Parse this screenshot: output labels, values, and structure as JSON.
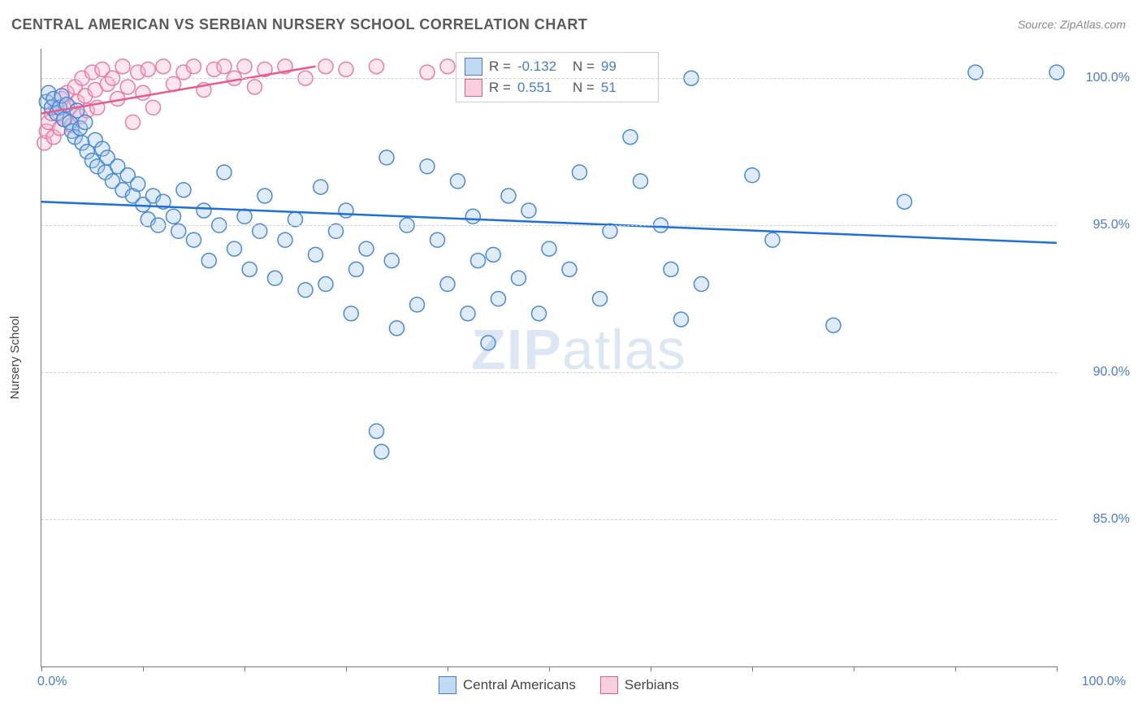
{
  "title": "CENTRAL AMERICAN VS SERBIAN NURSERY SCHOOL CORRELATION CHART",
  "source_label": "Source:",
  "source_value": "ZipAtlas.com",
  "yaxis_title": "Nursery School",
  "watermark": {
    "bold": "ZIP",
    "rest": "atlas"
  },
  "chart": {
    "type": "scatter",
    "background_color": "#ffffff",
    "grid_color": "#d0d0d0",
    "axis_color": "#777777",
    "text_color": "#5a5a5a",
    "value_color": "#4a7bd0",
    "xlim": [
      0,
      100
    ],
    "ylim": [
      80,
      101
    ],
    "x_ticks": [
      0,
      10,
      20,
      30,
      40,
      50,
      60,
      70,
      80,
      90,
      100
    ],
    "x_tick_labels": {
      "0": "0.0%",
      "100": "100.0%"
    },
    "y_gridlines": [
      85,
      90,
      95,
      100
    ],
    "y_tick_labels": {
      "85": "85.0%",
      "90": "90.0%",
      "95": "95.0%",
      "100": "100.0%"
    },
    "marker_radius": 9,
    "marker_opacity": 0.35,
    "line_width": 2.5
  },
  "series": {
    "blue": {
      "label": "Central Americans",
      "fill": "#a7c7ef",
      "stroke": "#4a8ad4",
      "line_color": "#1e6fd9",
      "R": "-0.132",
      "N": "99",
      "trend": {
        "x1": 0,
        "y1": 95.8,
        "x2": 100,
        "y2": 94.4
      },
      "points": [
        [
          0.5,
          99.2
        ],
        [
          0.7,
          99.5
        ],
        [
          1.0,
          99.0
        ],
        [
          1.2,
          99.3
        ],
        [
          1.5,
          98.8
        ],
        [
          1.8,
          99.0
        ],
        [
          2.0,
          99.4
        ],
        [
          2.2,
          98.6
        ],
        [
          2.5,
          99.1
        ],
        [
          2.8,
          98.5
        ],
        [
          3.0,
          98.2
        ],
        [
          3.3,
          98.0
        ],
        [
          3.5,
          98.9
        ],
        [
          3.8,
          98.3
        ],
        [
          4.0,
          97.8
        ],
        [
          4.3,
          98.5
        ],
        [
          4.5,
          97.5
        ],
        [
          5.0,
          97.2
        ],
        [
          5.3,
          97.9
        ],
        [
          5.5,
          97.0
        ],
        [
          6.0,
          97.6
        ],
        [
          6.3,
          96.8
        ],
        [
          6.5,
          97.3
        ],
        [
          7.0,
          96.5
        ],
        [
          7.5,
          97.0
        ],
        [
          8.0,
          96.2
        ],
        [
          8.5,
          96.7
        ],
        [
          9.0,
          96.0
        ],
        [
          9.5,
          96.4
        ],
        [
          10.0,
          95.7
        ],
        [
          10.5,
          95.2
        ],
        [
          11.0,
          96.0
        ],
        [
          11.5,
          95.0
        ],
        [
          12.0,
          95.8
        ],
        [
          13.0,
          95.3
        ],
        [
          13.5,
          94.8
        ],
        [
          14.0,
          96.2
        ],
        [
          15.0,
          94.5
        ],
        [
          16.0,
          95.5
        ],
        [
          16.5,
          93.8
        ],
        [
          17.5,
          95.0
        ],
        [
          18.0,
          96.8
        ],
        [
          19.0,
          94.2
        ],
        [
          20.0,
          95.3
        ],
        [
          20.5,
          93.5
        ],
        [
          21.5,
          94.8
        ],
        [
          22.0,
          96.0
        ],
        [
          23.0,
          93.2
        ],
        [
          24.0,
          94.5
        ],
        [
          25.0,
          95.2
        ],
        [
          26.0,
          92.8
        ],
        [
          27.0,
          94.0
        ],
        [
          27.5,
          96.3
        ],
        [
          28.0,
          93.0
        ],
        [
          29.0,
          94.8
        ],
        [
          30.0,
          95.5
        ],
        [
          30.5,
          92.0
        ],
        [
          31.0,
          93.5
        ],
        [
          32.0,
          94.2
        ],
        [
          33.0,
          88.0
        ],
        [
          34.0,
          97.3
        ],
        [
          34.5,
          93.8
        ],
        [
          35.0,
          91.5
        ],
        [
          36.0,
          95.0
        ],
        [
          37.0,
          92.3
        ],
        [
          38.0,
          97.0
        ],
        [
          39.0,
          94.5
        ],
        [
          40.0,
          93.0
        ],
        [
          41.0,
          96.5
        ],
        [
          42.0,
          92.0
        ],
        [
          42.5,
          95.3
        ],
        [
          43.0,
          93.8
        ],
        [
          44.0,
          91.0
        ],
        [
          44.5,
          94.0
        ],
        [
          45.0,
          92.5
        ],
        [
          46.0,
          96.0
        ],
        [
          47.0,
          93.2
        ],
        [
          48.0,
          95.5
        ],
        [
          49.0,
          92.0
        ],
        [
          50.0,
          94.2
        ],
        [
          52.0,
          93.5
        ],
        [
          53.0,
          96.8
        ],
        [
          55.0,
          92.5
        ],
        [
          56.0,
          94.8
        ],
        [
          58.0,
          98.0
        ],
        [
          59.0,
          96.5
        ],
        [
          60.0,
          100.3
        ],
        [
          61.0,
          95.0
        ],
        [
          62.0,
          93.5
        ],
        [
          63.0,
          91.8
        ],
        [
          64.0,
          100.0
        ],
        [
          65.0,
          93.0
        ],
        [
          70.0,
          96.7
        ],
        [
          72.0,
          94.5
        ],
        [
          78.0,
          91.6
        ],
        [
          85.0,
          95.8
        ],
        [
          92.0,
          100.2
        ],
        [
          100.0,
          100.2
        ],
        [
          33.5,
          87.3
        ]
      ]
    },
    "pink": {
      "label": "Serbians",
      "fill": "#f5b8cd",
      "stroke": "#e87da8",
      "line_color": "#e85a90",
      "R": "0.551",
      "N": "51",
      "trend": {
        "x1": 0,
        "y1": 98.8,
        "x2": 27,
        "y2": 100.4
      },
      "points": [
        [
          0.3,
          97.8
        ],
        [
          0.5,
          98.2
        ],
        [
          0.7,
          98.5
        ],
        [
          1.0,
          98.8
        ],
        [
          1.2,
          98.0
        ],
        [
          1.5,
          99.0
        ],
        [
          1.8,
          98.3
        ],
        [
          2.0,
          99.3
        ],
        [
          2.3,
          98.6
        ],
        [
          2.5,
          99.5
        ],
        [
          2.8,
          99.0
        ],
        [
          3.0,
          98.4
        ],
        [
          3.3,
          99.7
        ],
        [
          3.5,
          99.2
        ],
        [
          3.8,
          98.7
        ],
        [
          4.0,
          100.0
        ],
        [
          4.3,
          99.4
        ],
        [
          4.5,
          98.9
        ],
        [
          5.0,
          100.2
        ],
        [
          5.3,
          99.6
        ],
        [
          5.5,
          99.0
        ],
        [
          6.0,
          100.3
        ],
        [
          6.5,
          99.8
        ],
        [
          7.0,
          100.0
        ],
        [
          7.5,
          99.3
        ],
        [
          8.0,
          100.4
        ],
        [
          8.5,
          99.7
        ],
        [
          9.0,
          98.5
        ],
        [
          9.5,
          100.2
        ],
        [
          10.0,
          99.5
        ],
        [
          10.5,
          100.3
        ],
        [
          11.0,
          99.0
        ],
        [
          12.0,
          100.4
        ],
        [
          13.0,
          99.8
        ],
        [
          14.0,
          100.2
        ],
        [
          15.0,
          100.4
        ],
        [
          16.0,
          99.6
        ],
        [
          17.0,
          100.3
        ],
        [
          18.0,
          100.4
        ],
        [
          19.0,
          100.0
        ],
        [
          20.0,
          100.4
        ],
        [
          21.0,
          99.7
        ],
        [
          22.0,
          100.3
        ],
        [
          24.0,
          100.4
        ],
        [
          26.0,
          100.0
        ],
        [
          28.0,
          100.4
        ],
        [
          30.0,
          100.3
        ],
        [
          33.0,
          100.4
        ],
        [
          38.0,
          100.2
        ],
        [
          40.0,
          100.4
        ],
        [
          52.0,
          100.0
        ]
      ]
    }
  },
  "legend_top": {
    "r_label": "R =",
    "n_label": "N ="
  }
}
